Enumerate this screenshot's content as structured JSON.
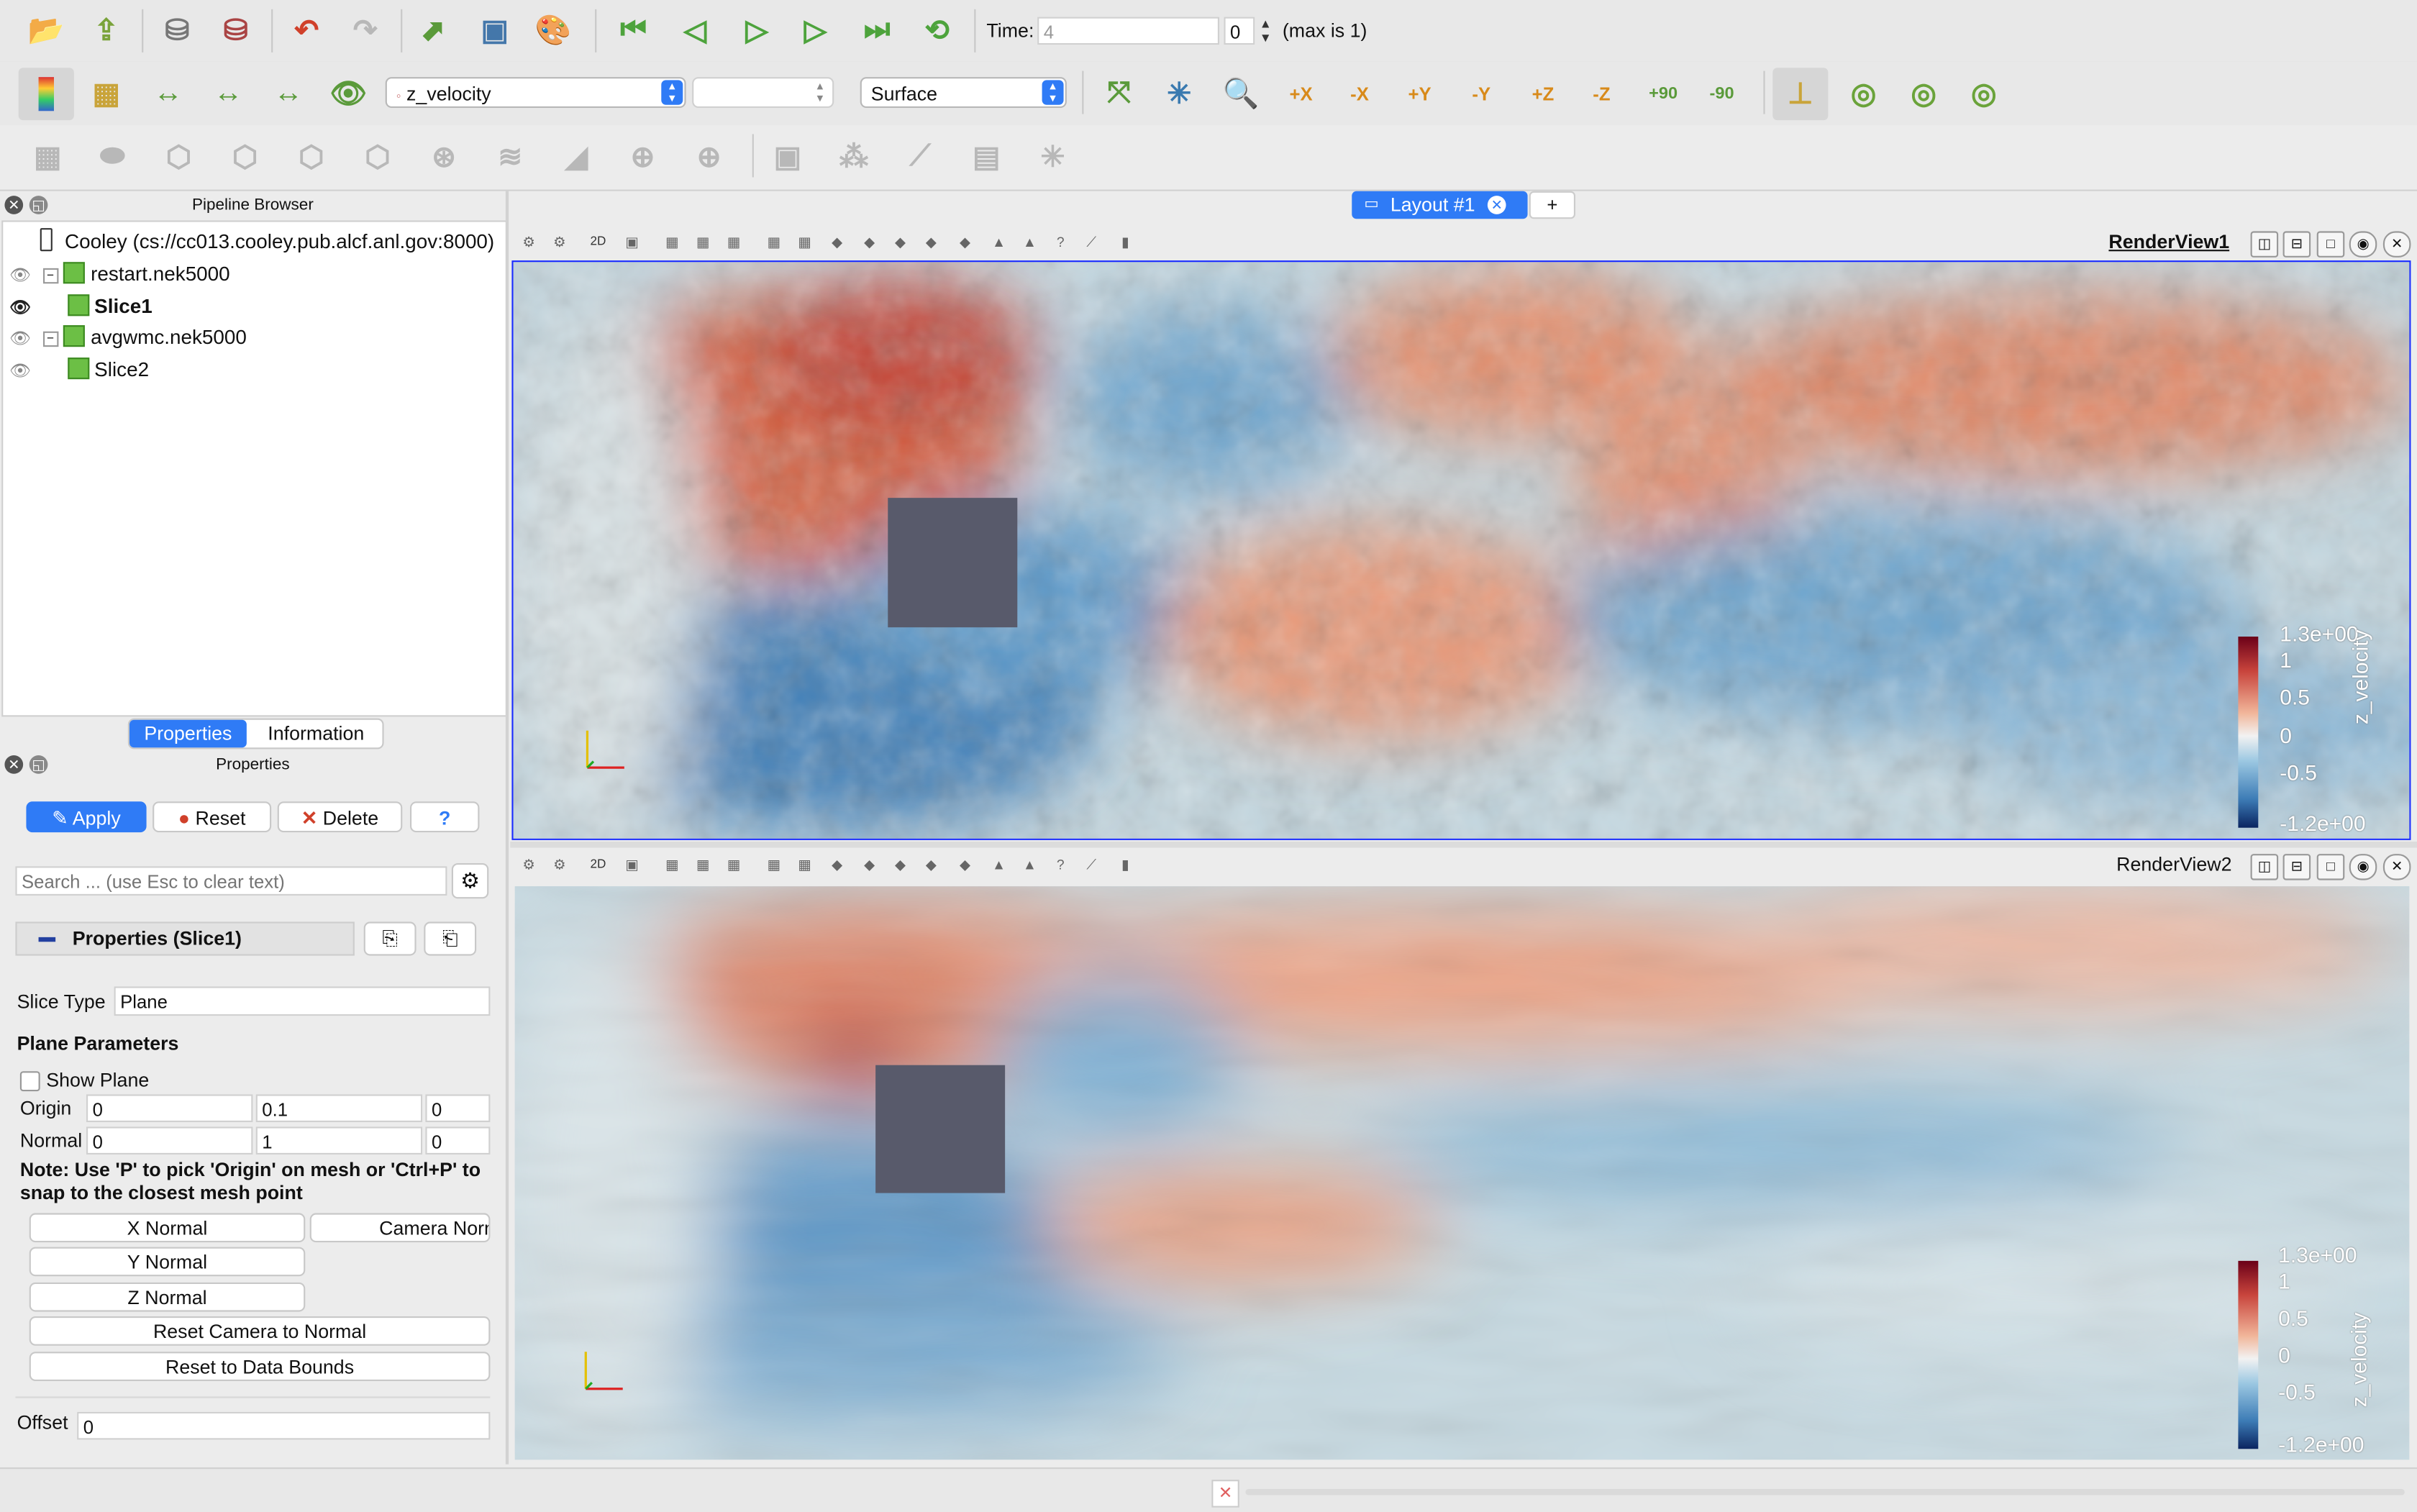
{
  "toolbar": {
    "time_label": "Time:",
    "time_value": "4",
    "time_step": "0",
    "time_max": "(max is 1)",
    "variable": "z_velocity",
    "component": "",
    "representation": "Surface",
    "camera_labels": [
      "+X",
      "-X",
      "+Y",
      "-Y",
      "+Z",
      "-Z",
      "+90",
      "-90"
    ]
  },
  "pipeline": {
    "title": "Pipeline Browser",
    "server": "Cooley (cs://cc013.cooley.pub.alcf.anl.gov:8000)",
    "items": [
      {
        "label": "restart.nek5000"
      },
      {
        "label": "Slice1"
      },
      {
        "label": "avgwmc.nek5000"
      },
      {
        "label": "Slice2"
      }
    ]
  },
  "tabs": {
    "properties": "Properties",
    "information": "Information"
  },
  "properties": {
    "title": "Properties",
    "apply": "Apply",
    "reset": "Reset",
    "delete": "Delete",
    "help": "?",
    "search_placeholder": "Search ... (use Esc to clear text)",
    "section": "Properties (Slice1)",
    "slice_type_label": "Slice Type",
    "slice_type": "Plane",
    "plane_params": "Plane Parameters",
    "show_plane": "Show Plane",
    "origin_label": "Origin",
    "origin": [
      "0",
      "0.1",
      "0"
    ],
    "normal_label": "Normal",
    "normal": [
      "0",
      "1",
      "0"
    ],
    "note": "Note: Use 'P' to pick 'Origin' on mesh or 'Ctrl+P' to snap to the closest mesh point",
    "x_normal": "X Normal",
    "camera_normal": "Camera Normal",
    "y_normal": "Y Normal",
    "z_normal": "Z Normal",
    "reset_camera": "Reset Camera to Normal",
    "reset_bounds": "Reset to Data Bounds",
    "offset_label": "Offset",
    "offset": "0"
  },
  "layout": {
    "tab": "Layout #1",
    "add": "+"
  },
  "views": [
    {
      "name": "RenderView1",
      "legend_title": "z_velocity",
      "ticks": [
        "1.3e+00",
        "1",
        "0.5",
        "0",
        "-0.5",
        "-1.2e+00"
      ]
    },
    {
      "name": "RenderView2",
      "legend_title": "z_velocity",
      "ticks": [
        "1.3e+00",
        "1",
        "0.5",
        "0",
        "-0.5",
        "-1.2e+00"
      ]
    }
  ],
  "colors": {
    "accent": "#2f7bf6",
    "active_border": "#1a2bff",
    "obstacle": "#585a6b"
  }
}
